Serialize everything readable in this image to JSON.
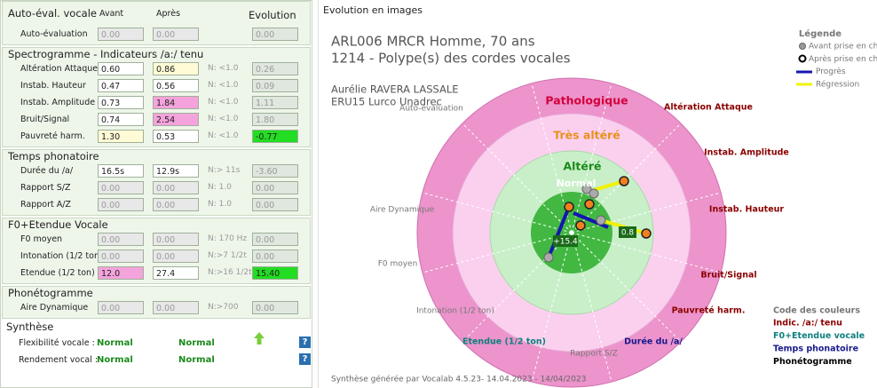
{
  "left_panel": {
    "header": {
      "title": "Auto-éval. vocale",
      "before": "Avant",
      "after": "Après",
      "evolution": "Evolution"
    },
    "sections": [
      {
        "rows": [
          {
            "label": "Auto-évaluation",
            "before": "0.00",
            "after": "0.00",
            "evolution": "0.00",
            "colors": [
              "#e8e8e8",
              "#e8e8e8",
              "#dfe7df"
            ]
          }
        ]
      },
      {
        "title": "Spectrogramme - Indicateurs /a:/ tenu",
        "rows": [
          {
            "label": "Altération Attaque",
            "before": "0.60",
            "after": "0.86",
            "norm": "N: <1.0",
            "evolution": "0.26",
            "colors": [
              "#ffffff",
              "#fffbd6",
              "#dfe7df"
            ]
          },
          {
            "label": "Instab. Hauteur",
            "before": "0.47",
            "after": "0.56",
            "norm": "N: <1.0",
            "evolution": "0.09",
            "colors": [
              "#ffffff",
              "#ffffff",
              "#dfe7df"
            ]
          },
          {
            "label": "Instab. Amplitude",
            "before": "0.73",
            "after": "1.84",
            "norm": "N: <1.0",
            "evolution": "1.11",
            "colors": [
              "#ffffff",
              "#f5a3dc",
              "#dfe7df"
            ]
          },
          {
            "label": "Bruit/Signal",
            "before": "0.74",
            "after": "2.54",
            "norm": "N: <1.0",
            "evolution": "1.80",
            "colors": [
              "#ffffff",
              "#f5a3dc",
              "#dfe7df"
            ]
          },
          {
            "label": "Pauvreté harm.",
            "before": "1.30",
            "after": "0.53",
            "norm": "N: <1.0",
            "evolution": "-0.77",
            "colors": [
              "#fffbd6",
              "#ffffff",
              "#22dd22"
            ]
          }
        ]
      },
      {
        "title": "Temps phonatoire",
        "rows": [
          {
            "label": "Durée du /a/",
            "before": "16.5s",
            "after": "12.9s",
            "norm": "N:> 11s",
            "evolution": "-3.60",
            "colors": [
              "#ffffff",
              "#ffffff",
              "#dfe7df"
            ]
          },
          {
            "label": "Rapport S/Z",
            "before": "0.00",
            "after": "0.00",
            "norm": "N: 1.0",
            "evolution": "0.00",
            "colors": [
              "#e8e8e8",
              "#e8e8e8",
              "#dfe7df"
            ]
          },
          {
            "label": "Rapport A/Z",
            "before": "0.00",
            "after": "0.00",
            "norm": "N: 1.0",
            "evolution": "0.00",
            "colors": [
              "#e8e8e8",
              "#e8e8e8",
              "#dfe7df"
            ]
          }
        ]
      },
      {
        "title": "F0+Etendue Vocale",
        "rows": [
          {
            "label": "F0 moyen",
            "before": "0.00",
            "after": "0.00",
            "norm": "N: 170 Hz",
            "evolution": "0.00",
            "colors": [
              "#e8e8e8",
              "#e8e8e8",
              "#dfe7df"
            ]
          },
          {
            "label": "Intonation (1/2 ton)",
            "before": "0.00",
            "after": "0.00",
            "norm": "N:>7 1/2t",
            "evolution": "0.00",
            "colors": [
              "#e8e8e8",
              "#e8e8e8",
              "#dfe7df"
            ]
          },
          {
            "label": "Etendue (1/2 ton)",
            "before": "12.0",
            "after": "27.4",
            "norm": "N:>16 1/2t",
            "evolution": "15.40",
            "colors": [
              "#f5a3dc",
              "#ffffff",
              "#22dd22"
            ]
          }
        ]
      },
      {
        "title": "Phonétogramme",
        "rows": [
          {
            "label": "Aire Dynamique",
            "before": "0.00",
            "after": "0.00",
            "norm": "N:>700",
            "evolution": "0.00",
            "colors": [
              "#e8e8e8",
              "#e8e8e8",
              "#dfe7df"
            ]
          }
        ]
      }
    ],
    "synthesis": {
      "title": "Synthèse",
      "rows": [
        {
          "label": "Flexibilité vocale :",
          "before": "Normal",
          "after": "Normal",
          "help": "?"
        },
        {
          "label": "Rendement vocal :",
          "before": "Normal",
          "after": "Normal",
          "help": "?"
        }
      ]
    }
  },
  "right_panel": {
    "title": "Evolution en images",
    "patient": [
      "ARL006 MRCR Homme, 70 ans",
      "1214 - Polype(s) des cordes vocales"
    ],
    "clinician": [
      "Aurélie RAVERA LASSALE",
      "ERU15 Lurco Unadrec"
    ],
    "legend": {
      "title": "Légende",
      "items": [
        "Avant prise en charge",
        "Après prise en charge",
        "Progrès",
        "Régression"
      ]
    },
    "zones": [
      {
        "label": "Pathologique",
        "color": "#d4003c"
      },
      {
        "label": "Très altéré",
        "color": "#e8901a"
      },
      {
        "label": "Altéré",
        "color": "#1a8a1a"
      },
      {
        "label": "Normal",
        "color": "#ffffff"
      }
    ],
    "axes": [
      {
        "label": "Auto-évaluation",
        "color": "#777777"
      },
      {
        "label": "Altération Attaque",
        "color": "#8b0000"
      },
      {
        "label": "Instab. Amplitude",
        "color": "#8b0000"
      },
      {
        "label": "Instab. Hauteur",
        "color": "#8b0000"
      },
      {
        "label": "Bruit/Signal",
        "color": "#8b0000"
      },
      {
        "label": "Pauvreté harm.",
        "color": "#8b0000"
      },
      {
        "label": "Durée du /a/",
        "color": "#1a1a8c"
      },
      {
        "label": "Rapport S/Z",
        "color": "#777777"
      },
      {
        "label": "Etendue (1/2 ton)",
        "color": "#0f7f7f"
      },
      {
        "label": "Intonation (1/2 ton)",
        "color": "#777777"
      },
      {
        "label": "F0 moyen",
        "color": "#777777"
      },
      {
        "label": "Aire Dynamique",
        "color": "#777777"
      }
    ],
    "point_labels": [
      "+15.4",
      "0.8"
    ],
    "color_code": {
      "title": "Code des couleurs",
      "items": [
        {
          "label": "Indic. /a:/ tenu",
          "color": "#8b0000"
        },
        {
          "label": "F0+Etendue vocale",
          "color": "#0f7f7f"
        },
        {
          "label": "Temps phonatoire",
          "color": "#1a1a8c"
        },
        {
          "label": "Phonétogramme",
          "color": "#000000"
        }
      ]
    },
    "footer": "Synthèse générée par Vocalab 4.5.23- 14.04.2023 - 14/04/2023"
  }
}
